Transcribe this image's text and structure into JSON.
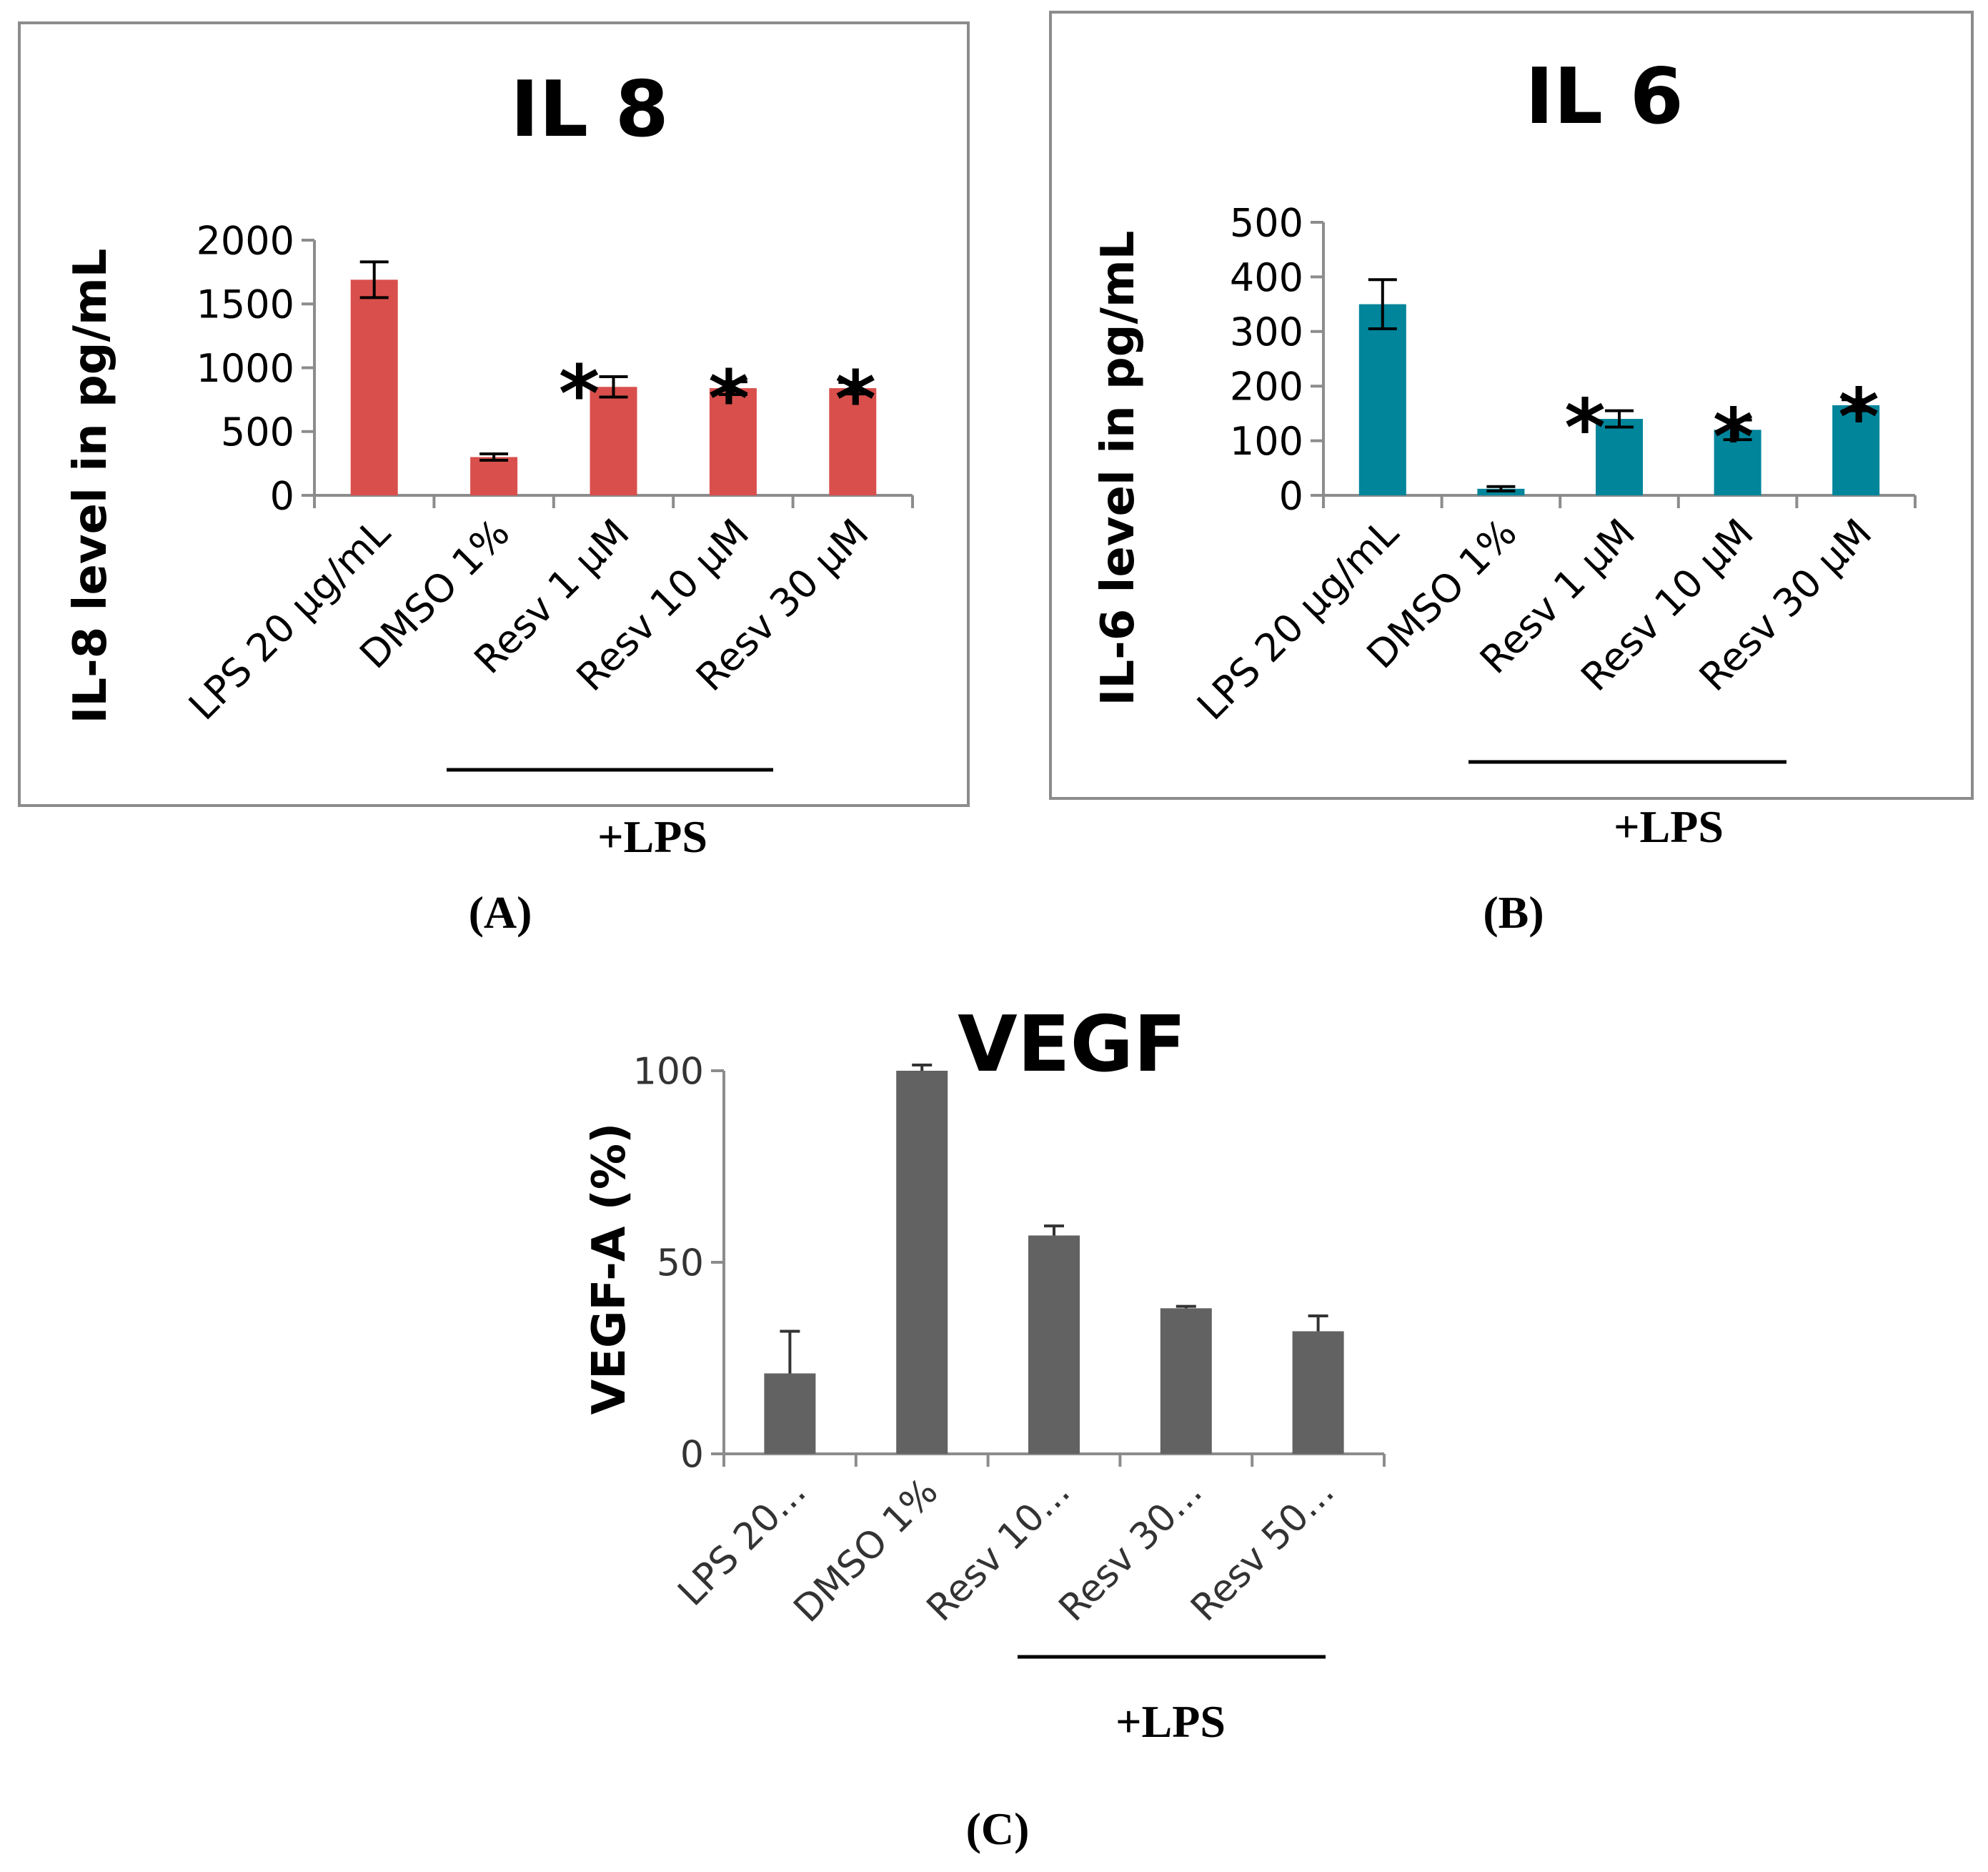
{
  "chart_data": [
    {
      "id": "A",
      "type": "bar",
      "title": "IL 8",
      "ylabel": "IL-8 level in pg/mL",
      "xlabel": "",
      "categories": [
        "LPS 20 μg/mL",
        "DMSO 1%",
        "Resv 1 μM",
        "Resv 10 μM",
        "Resv 30 μM"
      ],
      "values": [
        1690,
        300,
        850,
        840,
        840
      ],
      "errors": [
        140,
        25,
        80,
        50,
        45
      ],
      "significance": [
        "",
        "",
        "*",
        "*",
        "*"
      ],
      "yticks": [
        "0",
        "500",
        "1000",
        "1500",
        "2000"
      ],
      "ylim": [
        0,
        2000
      ],
      "grid": false,
      "color": "#d94f4c",
      "group_label": "+LPS",
      "panel_label": "(A)"
    },
    {
      "id": "B",
      "type": "bar",
      "title": "IL 6",
      "ylabel": "IL-6 level in pg/mL",
      "xlabel": "",
      "categories": [
        "LPS 20 μg/mL",
        "DMSO 1%",
        "Resv 1 μM",
        "Resv 10 μM",
        "Resv 30 μM"
      ],
      "values": [
        350,
        12,
        140,
        120,
        165
      ],
      "errors": [
        45,
        4,
        15,
        18,
        10
      ],
      "significance": [
        "",
        "",
        "*",
        "*",
        "*"
      ],
      "yticks": [
        "0",
        "100",
        "200",
        "300",
        "400",
        "500"
      ],
      "ylim": [
        0,
        500
      ],
      "grid": false,
      "color": "#00859b",
      "group_label": "+LPS",
      "panel_label": "(B)"
    },
    {
      "id": "C",
      "type": "bar",
      "title": "VEGF",
      "ylabel": "VEGF-A (%)",
      "xlabel": "",
      "categories": [
        "LPS 20...",
        "DMSO 1%",
        "Resv 10...",
        "Resv 30...",
        "Resv 50..."
      ],
      "values": [
        21,
        100,
        57,
        38,
        32
      ],
      "errors": [
        11,
        1.5,
        2.5,
        0.5,
        4
      ],
      "significance": [
        "",
        "",
        "",
        "",
        ""
      ],
      "yticks": [
        "0",
        "50",
        "100"
      ],
      "ylim": [
        0,
        100
      ],
      "grid": false,
      "color": "#626262",
      "group_label": "+LPS",
      "panel_label": "(C)"
    }
  ]
}
